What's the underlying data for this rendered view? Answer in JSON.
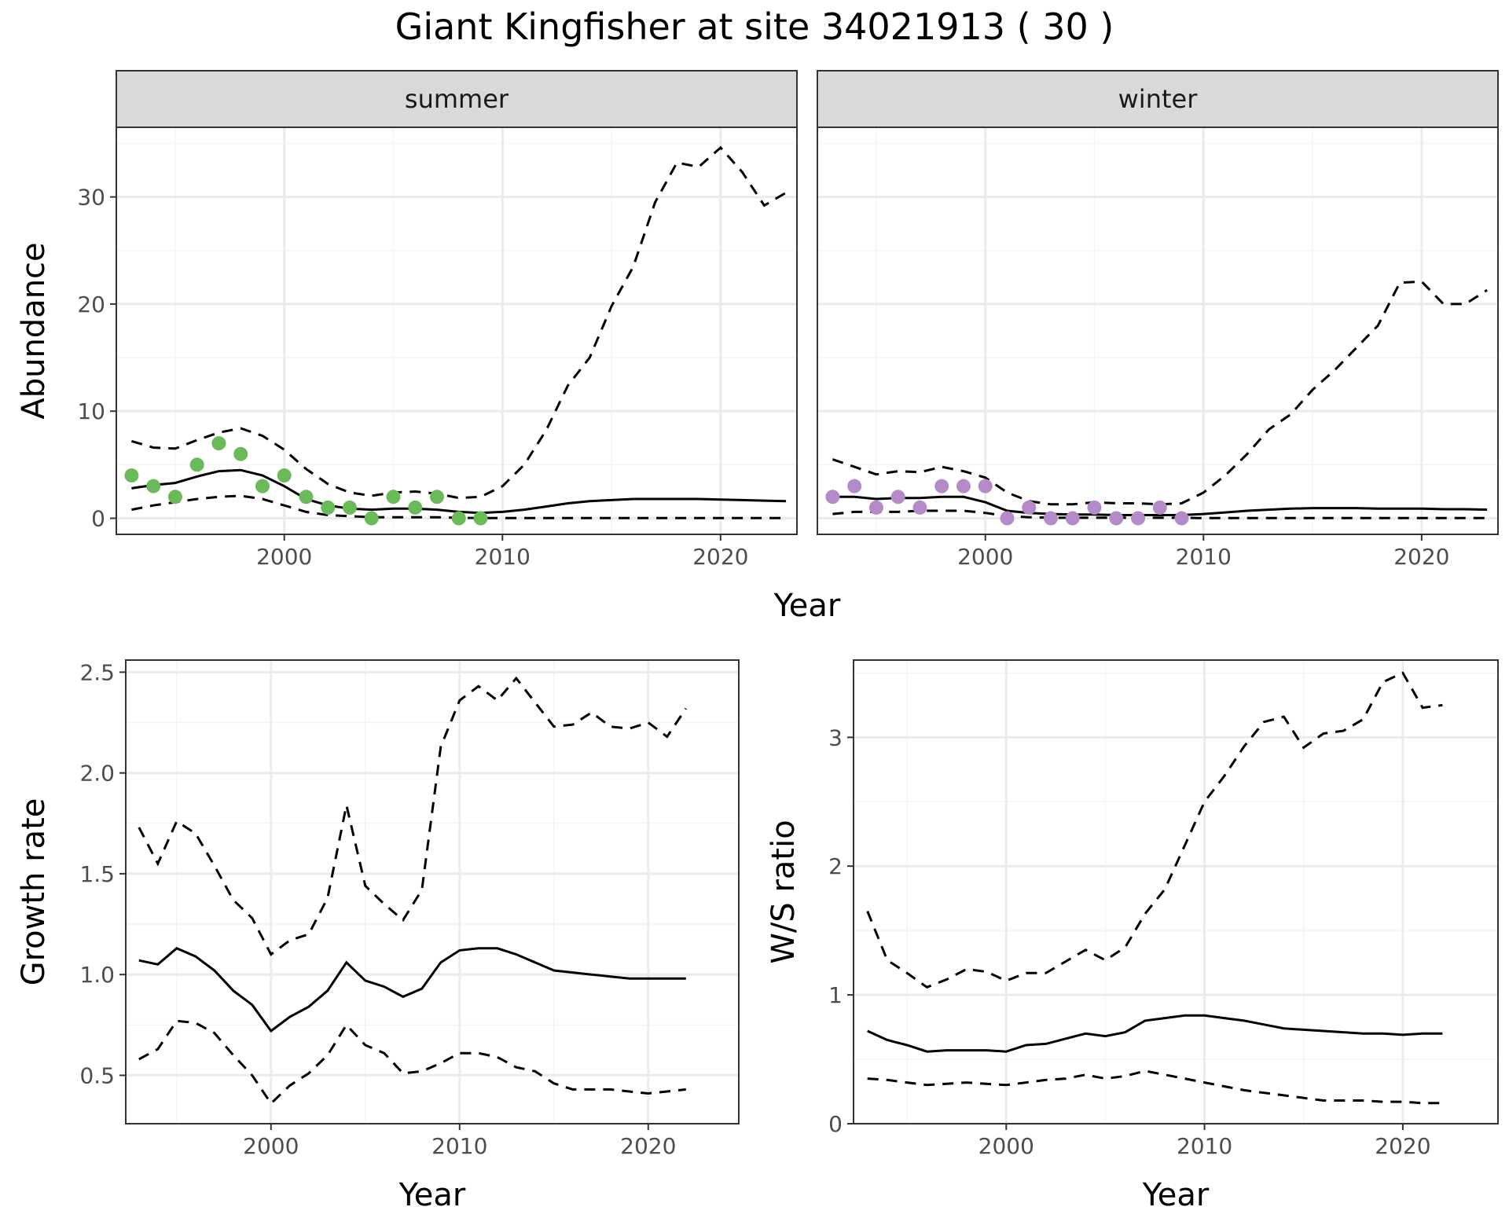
{
  "title": "Giant Kingfisher at site 34021913 ( 30 )",
  "colors": {
    "summer_points": "#6ABA5A",
    "winter_points": "#B48BC8",
    "line": "#000000",
    "strip_bg": "#D9D9D9",
    "grid_major": "#EBEBEB",
    "grid_minor": "#F4F4F4"
  },
  "chart_data": [
    {
      "type": "line",
      "panel": "top",
      "facets": [
        "summer",
        "winter"
      ],
      "xlabel": "Year",
      "ylabel": "Abundance",
      "xlim": [
        1992.3,
        2023.5
      ],
      "ylim": [
        -1.5,
        36.5
      ],
      "xticks": [
        2000,
        2010,
        2020
      ],
      "yticks": [
        0,
        10,
        20,
        30
      ],
      "grid": true,
      "summer": {
        "points": {
          "x": [
            1993,
            1994,
            1995,
            1996,
            1997,
            1998,
            1999,
            2000,
            2001,
            2002,
            2003,
            2004,
            2005,
            2006,
            2007,
            2008,
            2009
          ],
          "y": [
            4,
            3,
            2,
            5,
            7,
            6,
            3,
            4,
            2,
            1,
            1,
            0,
            2,
            1,
            2,
            0,
            0
          ]
        },
        "x": [
          1993,
          1994,
          1995,
          1996,
          1997,
          1998,
          1999,
          2000,
          2001,
          2002,
          2003,
          2004,
          2005,
          2006,
          2007,
          2008,
          2009,
          2010,
          2011,
          2012,
          2013,
          2014,
          2015,
          2016,
          2017,
          2018,
          2019,
          2020,
          2021,
          2022,
          2023
        ],
        "median": [
          2.8,
          3.1,
          3.3,
          3.9,
          4.4,
          4.5,
          4.0,
          3.0,
          1.8,
          1.2,
          0.9,
          0.8,
          0.9,
          0.9,
          0.8,
          0.6,
          0.5,
          0.6,
          0.8,
          1.1,
          1.4,
          1.6,
          1.7,
          1.8,
          1.8,
          1.8,
          1.8,
          1.75,
          1.7,
          1.65,
          1.6
        ],
        "lower": [
          0.8,
          1.2,
          1.5,
          1.8,
          2.0,
          2.1,
          1.8,
          1.2,
          0.6,
          0.3,
          0.2,
          0.1,
          0.1,
          0.1,
          0.1,
          0.05,
          0.02,
          0.02,
          0.02,
          0.02,
          0.02,
          0.02,
          0.02,
          0.02,
          0.02,
          0.02,
          0.02,
          0.02,
          0.02,
          0.02,
          0.02
        ],
        "upper": [
          7.2,
          6.6,
          6.5,
          7.3,
          8.0,
          8.4,
          7.7,
          6.4,
          4.6,
          3.2,
          2.4,
          2.1,
          2.4,
          2.5,
          2.3,
          1.9,
          2.0,
          3.0,
          5.0,
          8.2,
          12.4,
          15.0,
          19.8,
          23.5,
          29.5,
          33.2,
          32.8,
          34.6,
          32.3,
          29.2,
          30.4
        ]
      },
      "winter": {
        "points": {
          "x": [
            1993,
            1994,
            1995,
            1996,
            1997,
            1998,
            1999,
            2000,
            2001,
            2002,
            2003,
            2004,
            2005,
            2006,
            2007,
            2008,
            2009
          ],
          "y": [
            2,
            3,
            1,
            2,
            1,
            3,
            3,
            3,
            0,
            1,
            0,
            0,
            1,
            0,
            0,
            1,
            0
          ]
        },
        "x": [
          1993,
          1994,
          1995,
          1996,
          1997,
          1998,
          1999,
          2000,
          2001,
          2002,
          2003,
          2004,
          2005,
          2006,
          2007,
          2008,
          2009,
          2010,
          2011,
          2012,
          2013,
          2014,
          2015,
          2016,
          2017,
          2018,
          2019,
          2020,
          2021,
          2022,
          2023
        ],
        "median": [
          2.0,
          2.0,
          1.8,
          1.9,
          1.9,
          2.0,
          2.0,
          1.5,
          0.7,
          0.5,
          0.4,
          0.35,
          0.35,
          0.3,
          0.3,
          0.3,
          0.3,
          0.4,
          0.55,
          0.7,
          0.8,
          0.9,
          0.95,
          0.95,
          0.95,
          0.9,
          0.9,
          0.9,
          0.85,
          0.85,
          0.8
        ],
        "lower": [
          0.4,
          0.6,
          0.6,
          0.6,
          0.7,
          0.7,
          0.7,
          0.5,
          0.2,
          0.1,
          0.05,
          0.05,
          0.05,
          0.05,
          0.05,
          0.05,
          0.05,
          0.02,
          0.02,
          0.02,
          0.02,
          0.02,
          0.02,
          0.02,
          0.02,
          0.02,
          0.02,
          0.02,
          0.02,
          0.02,
          0.02
        ],
        "upper": [
          5.5,
          4.8,
          4.1,
          4.4,
          4.3,
          4.8,
          4.4,
          3.8,
          2.4,
          1.6,
          1.3,
          1.3,
          1.5,
          1.4,
          1.4,
          1.3,
          1.4,
          2.4,
          4.0,
          6.0,
          8.3,
          9.7,
          12.0,
          13.8,
          15.9,
          18.0,
          22.0,
          22.1,
          20.0,
          20.0,
          21.3
        ]
      }
    },
    {
      "type": "line",
      "panel": "bottom-left",
      "xlabel": "Year",
      "ylabel": "Growth rate",
      "xlim": [
        1992.3,
        2024.8
      ],
      "ylim": [
        0.26,
        2.56
      ],
      "xticks": [
        2000,
        2010,
        2020
      ],
      "yticks": [
        0.5,
        1.0,
        1.5,
        2.0,
        2.5
      ],
      "ytick_labels": [
        "0.5",
        "1.0",
        "1.5",
        "2.0",
        "2.5"
      ],
      "grid": true,
      "x": [
        1993,
        1994,
        1995,
        1996,
        1997,
        1998,
        1999,
        2000,
        2001,
        2002,
        2003,
        2004,
        2005,
        2006,
        2007,
        2008,
        2009,
        2010,
        2011,
        2012,
        2013,
        2014,
        2015,
        2016,
        2017,
        2018,
        2019,
        2020,
        2021,
        2022
      ],
      "median": [
        1.07,
        1.05,
        1.13,
        1.09,
        1.02,
        0.92,
        0.85,
        0.72,
        0.79,
        0.84,
        0.92,
        1.06,
        0.97,
        0.94,
        0.89,
        0.93,
        1.06,
        1.12,
        1.13,
        1.13,
        1.1,
        1.06,
        1.02,
        1.01,
        1.0,
        0.99,
        0.98,
        0.98,
        0.98,
        0.98
      ],
      "lower": [
        0.58,
        0.63,
        0.77,
        0.76,
        0.71,
        0.6,
        0.5,
        0.36,
        0.45,
        0.51,
        0.6,
        0.75,
        0.65,
        0.61,
        0.51,
        0.52,
        0.56,
        0.61,
        0.61,
        0.59,
        0.54,
        0.52,
        0.46,
        0.43,
        0.43,
        0.43,
        0.42,
        0.41,
        0.42,
        0.43
      ],
      "upper": [
        1.73,
        1.55,
        1.76,
        1.7,
        1.54,
        1.37,
        1.28,
        1.1,
        1.17,
        1.2,
        1.38,
        1.84,
        1.44,
        1.35,
        1.27,
        1.42,
        2.13,
        2.36,
        2.43,
        2.36,
        2.47,
        2.35,
        2.23,
        2.24,
        2.3,
        2.23,
        2.22,
        2.25,
        2.18,
        2.32
      ]
    },
    {
      "type": "line",
      "panel": "bottom-right",
      "xlabel": "Year",
      "ylabel": "W/S ratio",
      "xlim": [
        1992.3,
        2024.8
      ],
      "ylim": [
        0.0,
        3.6
      ],
      "xticks": [
        2000,
        2010,
        2020
      ],
      "yticks": [
        0,
        1,
        2,
        3
      ],
      "grid": true,
      "x": [
        1993,
        1994,
        1995,
        1996,
        1997,
        1998,
        1999,
        2000,
        2001,
        2002,
        2003,
        2004,
        2005,
        2006,
        2007,
        2008,
        2009,
        2010,
        2011,
        2012,
        2013,
        2014,
        2015,
        2016,
        2017,
        2018,
        2019,
        2020,
        2021,
        2022
      ],
      "median": [
        0.72,
        0.65,
        0.61,
        0.56,
        0.57,
        0.57,
        0.57,
        0.56,
        0.61,
        0.62,
        0.66,
        0.7,
        0.68,
        0.71,
        0.8,
        0.82,
        0.84,
        0.84,
        0.82,
        0.8,
        0.77,
        0.74,
        0.73,
        0.72,
        0.71,
        0.7,
        0.7,
        0.69,
        0.7,
        0.7
      ],
      "lower": [
        0.35,
        0.34,
        0.32,
        0.3,
        0.31,
        0.32,
        0.31,
        0.3,
        0.32,
        0.34,
        0.35,
        0.38,
        0.35,
        0.37,
        0.41,
        0.38,
        0.35,
        0.32,
        0.29,
        0.26,
        0.24,
        0.22,
        0.2,
        0.18,
        0.18,
        0.18,
        0.17,
        0.17,
        0.16,
        0.16
      ],
      "upper": [
        1.65,
        1.27,
        1.17,
        1.06,
        1.12,
        1.2,
        1.18,
        1.11,
        1.17,
        1.17,
        1.26,
        1.35,
        1.27,
        1.37,
        1.63,
        1.82,
        2.16,
        2.5,
        2.7,
        2.93,
        3.12,
        3.16,
        2.92,
        3.03,
        3.05,
        3.14,
        3.43,
        3.5,
        3.23,
        3.25
      ]
    }
  ]
}
